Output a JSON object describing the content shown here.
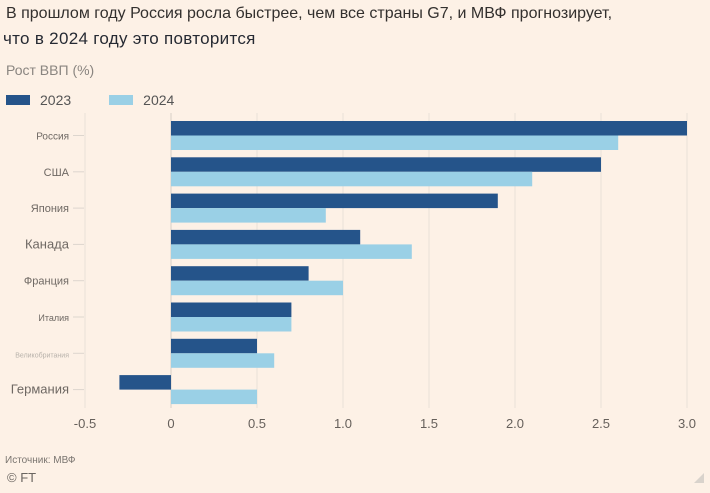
{
  "chart_data": {
    "type": "bar",
    "orientation": "horizontal",
    "title": "В прошлом году Россия росла быстрее, чем все страны G7, и МВФ прогнозирует,",
    "subtitle": "что в 2024 году это повторится",
    "ylabel": "Рост ВВП (%)",
    "xlabel": "",
    "categories": [
      "Россия",
      "США",
      "Япония",
      "Канада",
      "Франция",
      "Италия",
      "Великобритания",
      "Германия"
    ],
    "series": [
      {
        "name": "2023",
        "color": "#25548a",
        "values": [
          3.0,
          2.5,
          1.9,
          1.1,
          0.8,
          0.7,
          0.5,
          -0.3
        ]
      },
      {
        "name": "2024",
        "color": "#9ad0e6",
        "values": [
          2.6,
          2.1,
          0.9,
          1.4,
          1.0,
          0.7,
          0.6,
          0.5
        ]
      }
    ],
    "xlim": [
      -0.5,
      3.0
    ],
    "xticks": [
      -0.5,
      0,
      0.5,
      1.0,
      1.5,
      2.0,
      2.5,
      3.0
    ],
    "xtick_labels": [
      "-0.5",
      "0",
      "0.5",
      "1.0",
      "1.5",
      "2.0",
      "2.5",
      "3.0"
    ],
    "grid": true,
    "legend": "top-left"
  },
  "footer": {
    "source": "Источник: МВФ",
    "copyright": "© FT"
  }
}
